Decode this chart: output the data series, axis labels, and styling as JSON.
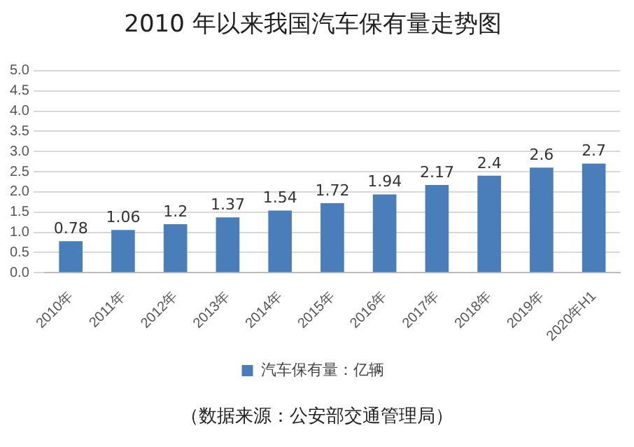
{
  "chart_data": {
    "type": "bar",
    "title": "2010 年以来我国汽车保有量走势图",
    "categories": [
      "2010年",
      "2011年",
      "2012年",
      "2013年",
      "2014年",
      "2015年",
      "2016年",
      "2017年",
      "2018年",
      "2019年",
      "2020年H1"
    ],
    "series": [
      {
        "name": "汽车保有量：亿辆",
        "color": "#4a7ebb",
        "values": [
          0.78,
          1.06,
          1.2,
          1.37,
          1.54,
          1.72,
          1.94,
          2.17,
          2.4,
          2.6,
          2.7
        ]
      }
    ],
    "ylim": [
      0,
      5
    ],
    "yticks": [
      {
        "value": 0,
        "label": "0.0"
      },
      0.5,
      {
        "value": 1,
        "label": "1.0"
      },
      1.5,
      {
        "value": 2,
        "label": "2.0"
      },
      2.5,
      {
        "value": 3,
        "label": "3.0"
      },
      3.5,
      {
        "value": 4,
        "label": "4.0"
      },
      4.5,
      {
        "value": 5,
        "label": "5.0"
      }
    ],
    "grid": "y",
    "legend": "bottom",
    "data_labels": true,
    "annotations": [
      "（数据来源：公安部交通管理局）"
    ]
  }
}
